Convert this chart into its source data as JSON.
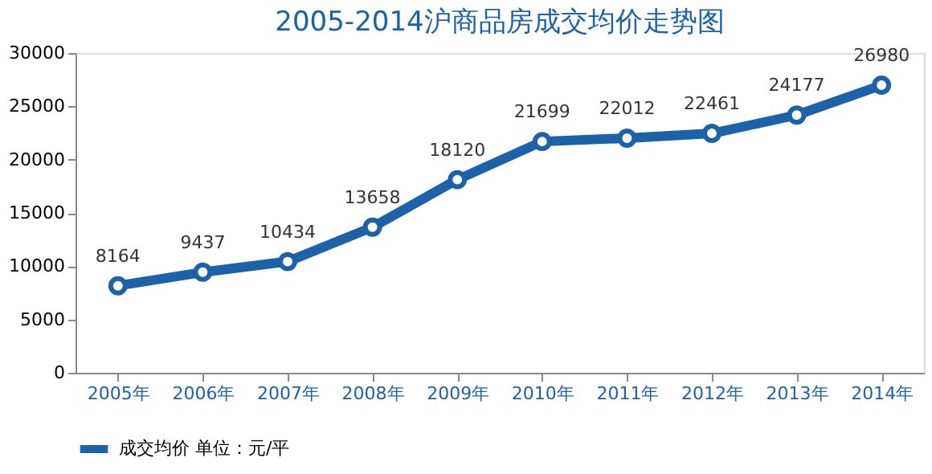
{
  "chart_data": {
    "type": "line",
    "title": "2005-2014沪商品房成交均价走势图",
    "categories": [
      "2005年",
      "2006年",
      "2007年",
      "2008年",
      "2009年",
      "2010年",
      "2011年",
      "2012年",
      "2013年",
      "2014年"
    ],
    "series": [
      {
        "name": "成交均价 单位：元/平",
        "color": "#1c62a8",
        "values": [
          8164,
          9437,
          10434,
          13658,
          18120,
          21699,
          22012,
          22461,
          24177,
          26980
        ]
      }
    ],
    "ylim": [
      0,
      30000
    ],
    "yticks": [
      0,
      5000,
      10000,
      15000,
      20000,
      25000,
      30000
    ],
    "grid": false,
    "legend": "bottom",
    "marker": "circle",
    "line_style": "solid",
    "data_labels": true
  }
}
